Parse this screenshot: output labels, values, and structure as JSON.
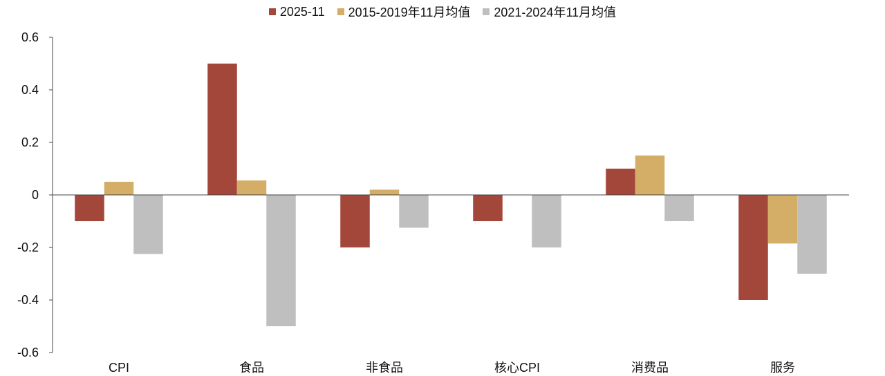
{
  "chart_data": {
    "type": "bar",
    "title": "",
    "xlabel": "",
    "ylabel": "",
    "categories": [
      "CPI",
      "食品",
      "非食品",
      "核心CPI",
      "消费品",
      "服务"
    ],
    "series": [
      {
        "name": "2025-11",
        "color": "#A3473A",
        "values": [
          -0.1,
          0.5,
          -0.2,
          -0.1,
          0.1,
          -0.4
        ]
      },
      {
        "name": "2015-2019年11月均值",
        "color": "#D4AD67",
        "values": [
          0.05,
          0.055,
          0.02,
          0.0,
          0.15,
          -0.185
        ]
      },
      {
        "name": "2021-2024年11月均值",
        "color": "#BFBFBF",
        "values": [
          -0.225,
          -0.5,
          -0.125,
          -0.2,
          -0.1,
          -0.3
        ]
      }
    ],
    "ylim": [
      -0.6,
      0.6
    ],
    "yticks": [
      0.6,
      0.4,
      0.2,
      0,
      -0.2,
      -0.4,
      -0.6
    ],
    "ytick_labels": [
      "0.6",
      "0.4",
      "0.2",
      "0",
      "-0.2",
      "-0.4",
      "-0.6"
    ],
    "grid": false,
    "legend_position": "top-center"
  }
}
